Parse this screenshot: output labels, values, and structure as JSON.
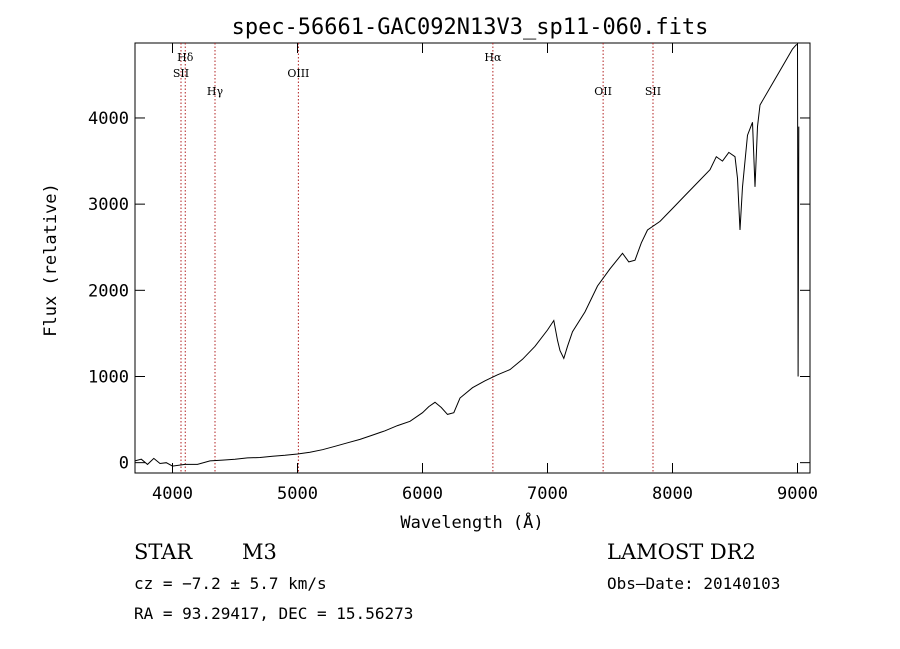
{
  "chart_data": {
    "type": "line",
    "title": "spec-56661-GAC092N13V3_sp11-060.fits",
    "xlabel": "Wavelength (Å)",
    "ylabel": "Flux (relative)",
    "xlim": [
      3700,
      9100
    ],
    "ylim": [
      -120,
      4870
    ],
    "x_ticks": [
      4000,
      5000,
      6000,
      7000,
      8000,
      9000
    ],
    "y_ticks": [
      0,
      1000,
      2000,
      3000,
      4000
    ],
    "grid": false,
    "series": [
      {
        "color": "#000000",
        "points": [
          [
            3700,
            20
          ],
          [
            3750,
            40
          ],
          [
            3800,
            -20
          ],
          [
            3850,
            50
          ],
          [
            3900,
            -10
          ],
          [
            3950,
            0
          ],
          [
            4000,
            -40
          ],
          [
            4100,
            -20
          ],
          [
            4200,
            -20
          ],
          [
            4300,
            20
          ],
          [
            4400,
            30
          ],
          [
            4500,
            40
          ],
          [
            4600,
            55
          ],
          [
            4700,
            60
          ],
          [
            4800,
            75
          ],
          [
            4900,
            85
          ],
          [
            5000,
            100
          ],
          [
            5100,
            120
          ],
          [
            5200,
            150
          ],
          [
            5300,
            190
          ],
          [
            5400,
            230
          ],
          [
            5500,
            270
          ],
          [
            5600,
            320
          ],
          [
            5700,
            370
          ],
          [
            5800,
            430
          ],
          [
            5900,
            480
          ],
          [
            6000,
            580
          ],
          [
            6050,
            650
          ],
          [
            6100,
            700
          ],
          [
            6150,
            640
          ],
          [
            6200,
            560
          ],
          [
            6250,
            580
          ],
          [
            6300,
            750
          ],
          [
            6400,
            870
          ],
          [
            6500,
            950
          ],
          [
            6600,
            1020
          ],
          [
            6700,
            1080
          ],
          [
            6800,
            1200
          ],
          [
            6900,
            1350
          ],
          [
            7000,
            1540
          ],
          [
            7050,
            1650
          ],
          [
            7080,
            1420
          ],
          [
            7100,
            1300
          ],
          [
            7130,
            1210
          ],
          [
            7160,
            1350
          ],
          [
            7200,
            1520
          ],
          [
            7300,
            1750
          ],
          [
            7400,
            2050
          ],
          [
            7500,
            2250
          ],
          [
            7600,
            2430
          ],
          [
            7650,
            2330
          ],
          [
            7700,
            2350
          ],
          [
            7750,
            2550
          ],
          [
            7800,
            2700
          ],
          [
            7900,
            2800
          ],
          [
            8000,
            2950
          ],
          [
            8100,
            3100
          ],
          [
            8200,
            3250
          ],
          [
            8300,
            3400
          ],
          [
            8350,
            3550
          ],
          [
            8400,
            3500
          ],
          [
            8450,
            3600
          ],
          [
            8500,
            3550
          ],
          [
            8520,
            3300
          ],
          [
            8540,
            2700
          ],
          [
            8560,
            3200
          ],
          [
            8600,
            3800
          ],
          [
            8640,
            3950
          ],
          [
            8660,
            3200
          ],
          [
            8680,
            3900
          ],
          [
            8700,
            4150
          ],
          [
            8800,
            4400
          ],
          [
            8900,
            4650
          ],
          [
            8960,
            4800
          ],
          [
            8990,
            4850
          ],
          [
            9000,
            4850
          ],
          [
            9005,
            1000
          ],
          [
            9010,
            3900
          ]
        ]
      }
    ],
    "annotations": [
      {
        "label": "Hδ",
        "x": 4102,
        "row": 0
      },
      {
        "label": "SII",
        "x": 4068,
        "row": 1
      },
      {
        "label": "Hγ",
        "x": 4340,
        "row": 2
      },
      {
        "label": "OIII",
        "x": 5007,
        "row": 1
      },
      {
        "label": "Hα",
        "x": 6563,
        "row": 0
      },
      {
        "label": "OII",
        "x": 7445,
        "row": 2
      },
      {
        "label": "SII",
        "x": 7844,
        "row": 2
      }
    ],
    "line_color": "#b22222"
  },
  "info": {
    "object_type": "STAR",
    "subclass": "M3",
    "survey": "LAMOST DR2",
    "cz": "cz = −7.2 ± 5.7 km/s",
    "obs_date": "Obs–Date: 20140103",
    "coords": "RA =  93.29417, DEC =  15.56273"
  }
}
